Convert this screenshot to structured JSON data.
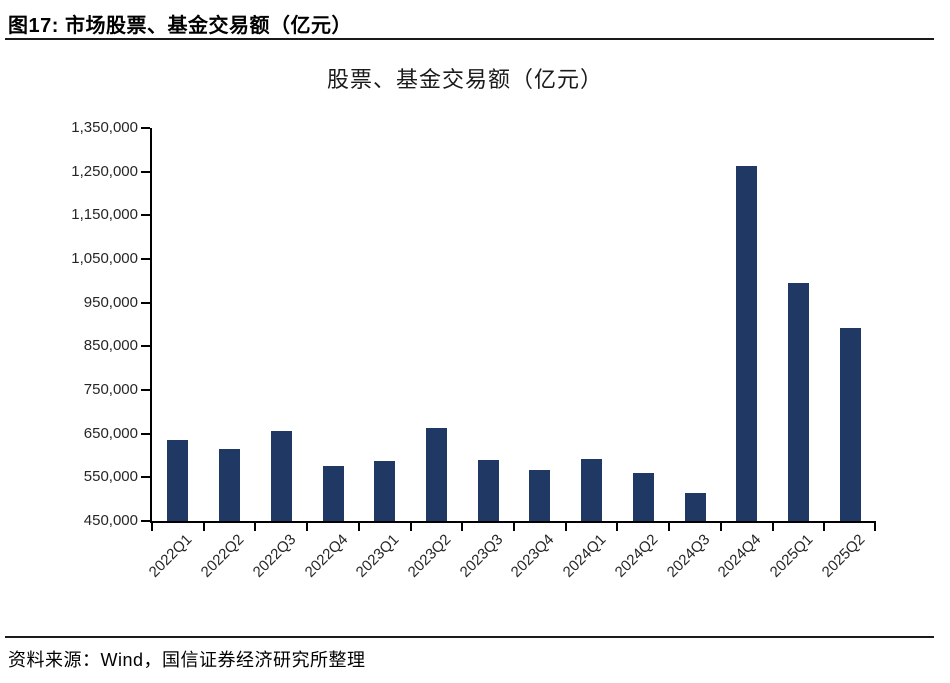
{
  "figure": {
    "caption": "图17: 市场股票、基金交易额（亿元）",
    "source_note": "资料来源：Wind，国信证券经济研究所整理"
  },
  "chart_data": {
    "type": "bar",
    "title": "股票、基金交易额（亿元）",
    "categories": [
      "2022Q1",
      "2022Q2",
      "2022Q3",
      "2022Q4",
      "2023Q1",
      "2023Q2",
      "2023Q3",
      "2023Q4",
      "2024Q1",
      "2024Q2",
      "2024Q3",
      "2024Q4",
      "2025Q1",
      "2025Q2"
    ],
    "values": [
      635000,
      614000,
      656000,
      576000,
      587000,
      662000,
      589000,
      566000,
      593000,
      559000,
      515000,
      1262000,
      996000,
      892000
    ],
    "xlabel": "",
    "ylabel": "",
    "ylim": [
      450000,
      1350000
    ],
    "ytick_step": 100000,
    "ytick_labels": [
      "450,000",
      "550,000",
      "650,000",
      "750,000",
      "850,000",
      "950,000",
      "1,050,000",
      "1,150,000",
      "1,250,000",
      "1,350,000"
    ],
    "grid": false,
    "legend": "none",
    "x_label_rotation_deg": -45,
    "colors": {
      "bar": "#1f3864",
      "axis": "#000000",
      "tick_text": "#262626",
      "title_text": "#1a1a1a"
    }
  }
}
